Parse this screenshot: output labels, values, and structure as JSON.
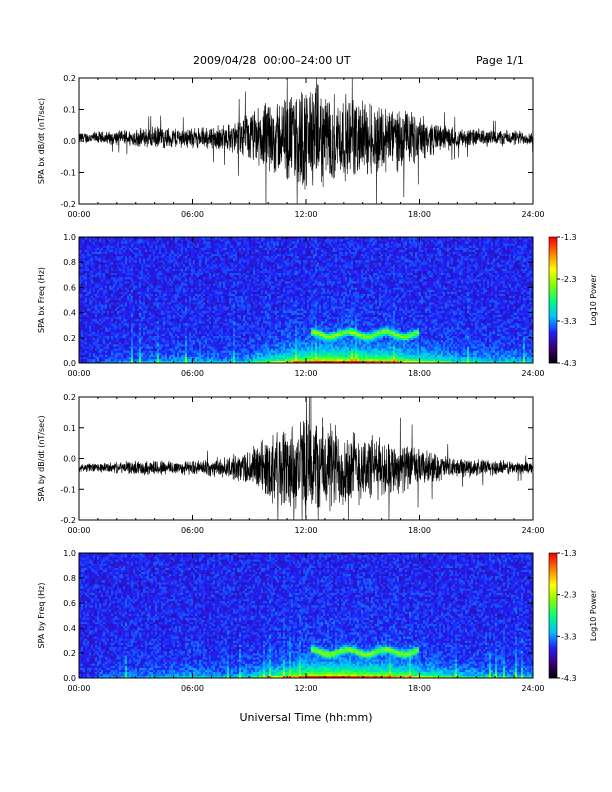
{
  "header": {
    "title": "2009/04/28  00:00–24:00 UT",
    "page": "Page 1/1"
  },
  "xlabel": "Universal Time (hh:mm)",
  "colors": {
    "trace": "#000000",
    "spectrogram_background": "#2a0a4a",
    "colormap": [
      "#000000",
      "#3a0070",
      "#2020ff",
      "#00c0ff",
      "#00ff80",
      "#80ff00",
      "#ffff00",
      "#ff8000",
      "#ff0000"
    ]
  },
  "chart_data": [
    {
      "type": "line",
      "name": "bx-waveform",
      "ylabel": "SPA bx dB/dt (nT/sec)",
      "xlim": [
        0,
        24
      ],
      "ylim": [
        -0.2,
        0.2
      ],
      "x_ticks": [
        "00:00",
        "06:00",
        "12:00",
        "18:00",
        "24:00"
      ],
      "y_ticks": [
        "-0.2",
        "-0.1",
        "0.0",
        "0.1",
        "0.2"
      ],
      "envelope_hours": [
        0,
        2,
        4,
        6,
        8,
        9,
        10,
        11,
        12,
        13,
        14,
        15,
        16,
        17,
        18,
        19,
        20,
        22,
        24
      ],
      "envelope_amp": [
        0.02,
        0.025,
        0.04,
        0.035,
        0.05,
        0.09,
        0.13,
        0.15,
        0.2,
        0.17,
        0.15,
        0.14,
        0.13,
        0.11,
        0.08,
        0.05,
        0.035,
        0.03,
        0.025
      ],
      "offset": 0.01
    },
    {
      "type": "heatmap",
      "name": "bx-spectrogram",
      "ylabel": "SPA bx Freq (Hz)",
      "xlim": [
        0,
        24
      ],
      "ylim": [
        0,
        1.0
      ],
      "x_ticks": [
        "00:00",
        "06:00",
        "12:00",
        "18:00",
        "24:00"
      ],
      "y_ticks": [
        "0.0",
        "0.2",
        "0.4",
        "0.6",
        "0.8",
        "1.0"
      ],
      "colorbar": {
        "label": "Log10 Power",
        "ticks": [
          "-1.3",
          "-2.3",
          "-3.3",
          "-4.3"
        ],
        "range": [
          -4.3,
          -1.3
        ]
      },
      "band": {
        "start_hour": 12.3,
        "end_hour": 18.0,
        "freq": 0.23
      }
    },
    {
      "type": "line",
      "name": "by-waveform",
      "ylabel": "SPA by dB/dt (nT/sec)",
      "xlim": [
        0,
        24
      ],
      "ylim": [
        -0.2,
        0.2
      ],
      "x_ticks": [
        "00:00",
        "06:00",
        "12:00",
        "18:00",
        "24:00"
      ],
      "y_ticks": [
        "-0.2",
        "-0.1",
        "0.0",
        "0.1",
        "0.2"
      ],
      "envelope_hours": [
        0,
        2,
        4,
        6,
        8,
        9,
        10,
        11,
        12,
        13,
        14,
        15,
        16,
        17,
        18,
        19,
        20,
        22,
        24
      ],
      "envelope_amp": [
        0.015,
        0.02,
        0.03,
        0.025,
        0.04,
        0.07,
        0.12,
        0.16,
        0.2,
        0.18,
        0.15,
        0.13,
        0.11,
        0.09,
        0.07,
        0.05,
        0.035,
        0.03,
        0.02
      ],
      "offset": -0.03
    },
    {
      "type": "heatmap",
      "name": "by-spectrogram",
      "ylabel": "SPA by Freq (Hz)",
      "xlim": [
        0,
        24
      ],
      "ylim": [
        0,
        1.0
      ],
      "x_ticks": [
        "00:00",
        "06:00",
        "12:00",
        "18:00",
        "24:00"
      ],
      "y_ticks": [
        "0.0",
        "0.2",
        "0.4",
        "0.6",
        "0.8",
        "1.0"
      ],
      "colorbar": {
        "label": "Log10 Power",
        "ticks": [
          "-1.3",
          "-2.3",
          "-3.3",
          "-4.3"
        ],
        "range": [
          -4.3,
          -1.3
        ]
      },
      "band": {
        "start_hour": 12.3,
        "end_hour": 18.0,
        "freq": 0.21
      }
    }
  ]
}
